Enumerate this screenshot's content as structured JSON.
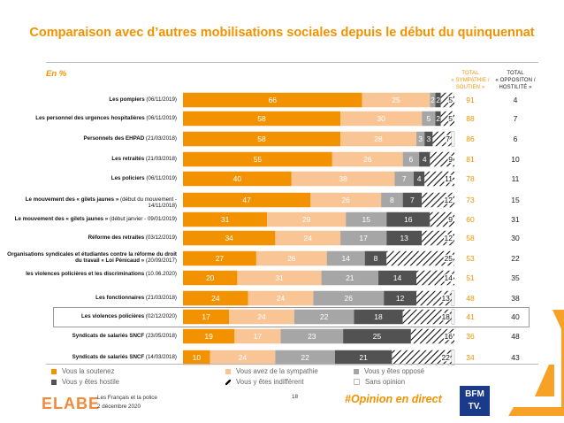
{
  "title": "Comparaison avec d’autres mobilisations sociales depuis le début du quinquennat",
  "unit_label": "En %",
  "columns": {
    "total_sympathie": [
      "TOTAL",
      "« SYMPATHIE /",
      "SOUTIEN »"
    ],
    "total_opposition": [
      "TOTAL",
      "« OPPOSITON /",
      "HOSTILITÉ »"
    ]
  },
  "colors": {
    "soutenez": "#f39200",
    "sympathie": "#fac595",
    "oppose": "#a6a6a6",
    "hostile": "#525252",
    "indifferent": "#ffffff",
    "sans_opinion": "#ffffff",
    "accent": "#f39200"
  },
  "legend": [
    {
      "key": "soutenez",
      "label": "Vous la soutenez"
    },
    {
      "key": "sympathie",
      "label": "Vous avez de la sympathie"
    },
    {
      "key": "oppose",
      "label": "Vous y êtes opposé"
    },
    {
      "key": "hostile",
      "label": "Vous y êtes hostile"
    },
    {
      "key": "indifferent",
      "label": "Vous y êtes indifférent"
    },
    {
      "key": "sans_opinion",
      "label": "Sans opinion"
    }
  ],
  "chart_data": {
    "type": "bar",
    "orientation": "horizontal",
    "stacked": true,
    "categories": [
      {
        "name": "Les pompiers",
        "date": "(06/11/2019)"
      },
      {
        "name": "Les personnel des urgences hospitalières",
        "date": "(06/11/2019)"
      },
      {
        "name": "Personnels des EHPAD",
        "date": "(21/03/2018)"
      },
      {
        "name": "Les retraités",
        "date": "(21/03/2018)"
      },
      {
        "name": "Les policiers",
        "date": "(06/11/2019)"
      },
      {
        "name": "Le mouvement des « gilets jaunes »",
        "date": "(début du mouvement - 14/11/2018)"
      },
      {
        "name": "Le mouvement des « gilets jaunes »",
        "date": "(début janvier - 09/01/2019)"
      },
      {
        "name": "Réforme des retraites",
        "date": "(03/12/2019)"
      },
      {
        "name": "Organisations syndicales et étudiantes contre la réforme du droit du travail « Loi Pénicaud »",
        "date": "(20/09/2017)"
      },
      {
        "name": "les violences policières et les discriminations",
        "date": "(10.06.2020)"
      },
      {
        "name": "Les fonctionnaires",
        "date": "(21/03/2018)"
      },
      {
        "name": "Les violences policières",
        "date": "(02/12/2020)"
      },
      {
        "name": "Syndicats de salariés SNCF",
        "date": "(23/05/2018)"
      },
      {
        "name": "Syndicats de salariés SNCF",
        "date": "(14/03/2018)"
      }
    ],
    "series": [
      {
        "name": "Vous la soutenez",
        "values": [
          66,
          58,
          58,
          55,
          40,
          47,
          31,
          34,
          27,
          20,
          24,
          17,
          19,
          10
        ]
      },
      {
        "name": "Vous avez de la sympathie",
        "values": [
          25,
          30,
          28,
          26,
          38,
          26,
          29,
          24,
          26,
          31,
          24,
          24,
          17,
          24
        ]
      },
      {
        "name": "Vous y êtes opposé",
        "values": [
          2,
          5,
          3,
          6,
          7,
          8,
          15,
          17,
          14,
          21,
          26,
          22,
          23,
          22
        ]
      },
      {
        "name": "Vous y êtes hostile",
        "values": [
          2,
          2,
          3,
          4,
          4,
          7,
          16,
          13,
          8,
          14,
          12,
          18,
          25,
          21
        ]
      },
      {
        "name": "Vous y êtes indifférent",
        "values": [
          5,
          5,
          7,
          9,
          11,
          12,
          9,
          12,
          25,
          14,
          13,
          18,
          16,
          22
        ]
      },
      {
        "name": "Sans opinion",
        "values": [
          0,
          0,
          1,
          0,
          0,
          0,
          0,
          0,
          0,
          0,
          1,
          1,
          0,
          1
        ]
      }
    ],
    "totals_sympathie": [
      91,
      88,
      86,
      81,
      78,
      73,
      60,
      58,
      53,
      51,
      48,
      41,
      36,
      34
    ],
    "totals_opposition": [
      4,
      7,
      6,
      10,
      11,
      15,
      31,
      30,
      22,
      35,
      38,
      40,
      48,
      43
    ],
    "highlight_row": 11,
    "xlim": [
      0,
      100
    ]
  },
  "footer": {
    "brand": "ELABE",
    "line1": "Les Français et la police",
    "line2": "2 décembre 2020",
    "page_number": "18",
    "hashtag": "#Opinion en direct",
    "partner": "BFM TV."
  }
}
